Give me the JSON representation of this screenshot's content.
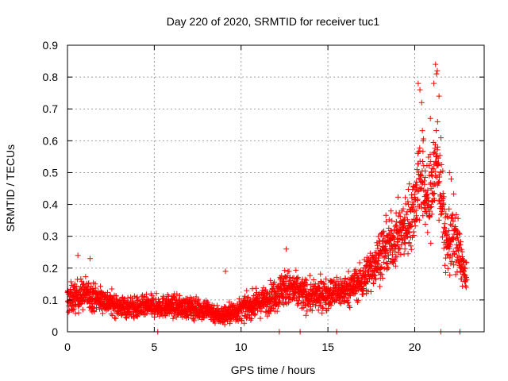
{
  "chart_data": {
    "type": "scatter",
    "title": "Day 220 of 2020, SRMTID for receiver tuc1",
    "xlabel": "GPS time / hours",
    "ylabel": "SRMTID / TECUs",
    "xlim": [
      0,
      24
    ],
    "ylim": [
      0,
      0.9
    ],
    "xticks": [
      0,
      5,
      10,
      15,
      20
    ],
    "yticks": [
      0,
      0.1,
      0.2,
      0.3,
      0.4,
      0.5,
      0.6,
      0.7,
      0.8,
      0.9
    ],
    "xtick_labels": [
      "0",
      "5",
      "10",
      "15",
      "20"
    ],
    "ytick_labels": [
      "0",
      "0.1",
      "0.2",
      "0.3",
      "0.4",
      "0.5",
      "0.6",
      "0.7",
      "0.8",
      "0.9"
    ],
    "grid": true,
    "marker": "+",
    "series": [
      {
        "name": "SRMTID",
        "color": "#ff0000",
        "trend": [
          {
            "x": 0.0,
            "y": 0.1,
            "spread": 0.05
          },
          {
            "x": 1.0,
            "y": 0.12,
            "spread": 0.05
          },
          {
            "x": 2.0,
            "y": 0.1,
            "spread": 0.04
          },
          {
            "x": 3.0,
            "y": 0.08,
            "spread": 0.035
          },
          {
            "x": 4.0,
            "y": 0.075,
            "spread": 0.035
          },
          {
            "x": 5.0,
            "y": 0.08,
            "spread": 0.035
          },
          {
            "x": 6.0,
            "y": 0.08,
            "spread": 0.035
          },
          {
            "x": 7.0,
            "y": 0.075,
            "spread": 0.035
          },
          {
            "x": 8.0,
            "y": 0.07,
            "spread": 0.035
          },
          {
            "x": 8.8,
            "y": 0.05,
            "spread": 0.03
          },
          {
            "x": 9.5,
            "y": 0.06,
            "spread": 0.035
          },
          {
            "x": 10.5,
            "y": 0.08,
            "spread": 0.04
          },
          {
            "x": 11.5,
            "y": 0.1,
            "spread": 0.045
          },
          {
            "x": 12.5,
            "y": 0.14,
            "spread": 0.06
          },
          {
            "x": 13.0,
            "y": 0.13,
            "spread": 0.06
          },
          {
            "x": 14.0,
            "y": 0.11,
            "spread": 0.05
          },
          {
            "x": 15.0,
            "y": 0.12,
            "spread": 0.05
          },
          {
            "x": 16.0,
            "y": 0.13,
            "spread": 0.05
          },
          {
            "x": 17.0,
            "y": 0.16,
            "spread": 0.06
          },
          {
            "x": 18.0,
            "y": 0.24,
            "spread": 0.08
          },
          {
            "x": 19.0,
            "y": 0.3,
            "spread": 0.09
          },
          {
            "x": 19.5,
            "y": 0.33,
            "spread": 0.1
          },
          {
            "x": 20.0,
            "y": 0.4,
            "spread": 0.12
          },
          {
            "x": 20.3,
            "y": 0.5,
            "spread": 0.16
          },
          {
            "x": 20.8,
            "y": 0.4,
            "spread": 0.14
          },
          {
            "x": 21.3,
            "y": 0.55,
            "spread": 0.18
          },
          {
            "x": 21.8,
            "y": 0.28,
            "spread": 0.1
          },
          {
            "x": 22.3,
            "y": 0.3,
            "spread": 0.12
          },
          {
            "x": 22.7,
            "y": 0.22,
            "spread": 0.07
          },
          {
            "x": 23.0,
            "y": 0.15,
            "spread": 0.05
          }
        ],
        "peaks": [
          {
            "x": 20.2,
            "y": 0.78
          },
          {
            "x": 20.3,
            "y": 0.76
          },
          {
            "x": 20.4,
            "y": 0.72
          },
          {
            "x": 21.2,
            "y": 0.84
          },
          {
            "x": 21.3,
            "y": 0.82
          },
          {
            "x": 21.25,
            "y": 0.81
          },
          {
            "x": 21.1,
            "y": 0.78
          },
          {
            "x": 20.9,
            "y": 0.67
          },
          {
            "x": 21.4,
            "y": 0.74
          },
          {
            "x": 22.1,
            "y": 0.48
          },
          {
            "x": 22.0,
            "y": 0.5
          },
          {
            "x": 12.6,
            "y": 0.26
          },
          {
            "x": 9.1,
            "y": 0.19
          },
          {
            "x": 0.6,
            "y": 0.24
          },
          {
            "x": 1.3,
            "y": 0.23
          }
        ],
        "baseline_points": [
          {
            "x": 5.2,
            "y": 0.0
          },
          {
            "x": 12.2,
            "y": 0.0
          },
          {
            "x": 13.4,
            "y": 0.0
          },
          {
            "x": 15.5,
            "y": 0.0
          },
          {
            "x": 21.5,
            "y": 0.0
          },
          {
            "x": 22.6,
            "y": 0.0
          }
        ]
      }
    ]
  }
}
